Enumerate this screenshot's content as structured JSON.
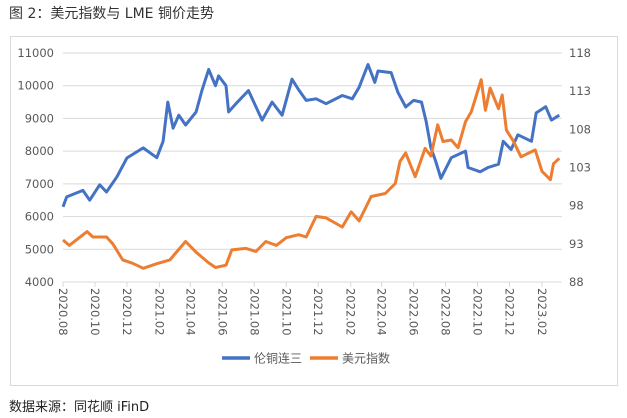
{
  "title": "图 2：美元指数与 LME 铜价走势",
  "source": "数据来源：同花顺 iFinD",
  "chart_data": {
    "type": "line",
    "title": "图 2：美元指数与 LME 铜价走势",
    "legend_position": "bottom",
    "grid": true,
    "x_ticks": [
      "2020.08",
      "2020.10",
      "2020.12",
      "2021.02",
      "2021.04",
      "2021.06",
      "2021.08",
      "2021.10",
      "2021.12",
      "2022.02",
      "2022.04",
      "2022.06",
      "2022.08",
      "2022.10",
      "2022.12",
      "2023.02"
    ],
    "x_tick_dates": [
      "2020-08-01",
      "2020-10-01",
      "2020-12-01",
      "2021-02-01",
      "2021-04-01",
      "2021-06-01",
      "2021-08-01",
      "2021-10-01",
      "2021-12-01",
      "2022-02-01",
      "2022-04-01",
      "2022-06-01",
      "2022-08-01",
      "2022-10-01",
      "2022-12-01",
      "2023-02-01"
    ],
    "y_left": {
      "range": [
        4000,
        11000
      ],
      "ticks": [
        "4000",
        "5000",
        "6000",
        "7000",
        "8000",
        "9000",
        "10000",
        "11000"
      ]
    },
    "y_right": {
      "range": [
        88,
        118
      ],
      "ticks": [
        "88",
        "93",
        "98",
        "103",
        "108",
        "113",
        "118"
      ]
    },
    "series": [
      {
        "name": "伦铜连三",
        "axis": "left",
        "color": "#4472C4",
        "points": [
          [
            "2020-08-01",
            6300
          ],
          [
            "2020-08-08",
            6600
          ],
          [
            "2020-09-08",
            6800
          ],
          [
            "2020-09-21",
            6500
          ],
          [
            "2020-10-10",
            6970
          ],
          [
            "2020-10-23",
            6750
          ],
          [
            "2020-11-12",
            7220
          ],
          [
            "2020-12-01",
            7790
          ],
          [
            "2020-12-12",
            7900
          ],
          [
            "2021-01-01",
            8100
          ],
          [
            "2021-01-27",
            7800
          ],
          [
            "2021-02-08",
            8300
          ],
          [
            "2021-02-17",
            9500
          ],
          [
            "2021-02-27",
            8700
          ],
          [
            "2021-03-10",
            9100
          ],
          [
            "2021-03-23",
            8800
          ],
          [
            "2021-04-12",
            9200
          ],
          [
            "2021-04-23",
            9850
          ],
          [
            "2021-05-06",
            10500
          ],
          [
            "2021-05-19",
            10000
          ],
          [
            "2021-05-25",
            10300
          ],
          [
            "2021-06-08",
            10000
          ],
          [
            "2021-06-13",
            9200
          ],
          [
            "2021-06-27",
            9450
          ],
          [
            "2021-07-21",
            9850
          ],
          [
            "2021-08-16",
            8950
          ],
          [
            "2021-09-04",
            9500
          ],
          [
            "2021-09-23",
            9100
          ],
          [
            "2021-10-12",
            10200
          ],
          [
            "2021-10-25",
            9870
          ],
          [
            "2021-11-08",
            9550
          ],
          [
            "2021-11-27",
            9600
          ],
          [
            "2021-12-16",
            9450
          ],
          [
            "2022-01-16",
            9700
          ],
          [
            "2022-02-04",
            9600
          ],
          [
            "2022-02-17",
            9950
          ],
          [
            "2022-03-06",
            10650
          ],
          [
            "2022-03-19",
            10100
          ],
          [
            "2022-03-25",
            10450
          ],
          [
            "2022-04-19",
            10400
          ],
          [
            "2022-05-02",
            9800
          ],
          [
            "2022-05-17",
            9350
          ],
          [
            "2022-06-01",
            9550
          ],
          [
            "2022-06-16",
            9500
          ],
          [
            "2022-06-25",
            8900
          ],
          [
            "2022-07-04",
            8100
          ],
          [
            "2022-07-13",
            7700
          ],
          [
            "2022-07-23",
            7170
          ],
          [
            "2022-08-12",
            7800
          ],
          [
            "2022-09-08",
            8000
          ],
          [
            "2022-09-13",
            7500
          ],
          [
            "2022-10-06",
            7370
          ],
          [
            "2022-10-21",
            7500
          ],
          [
            "2022-11-10",
            7600
          ],
          [
            "2022-11-19",
            8300
          ],
          [
            "2022-12-04",
            8050
          ],
          [
            "2022-12-17",
            8500
          ],
          [
            "2023-01-12",
            8300
          ],
          [
            "2023-01-21",
            9170
          ],
          [
            "2023-02-08",
            9360
          ],
          [
            "2023-02-19",
            8950
          ],
          [
            "2023-03-06",
            9100
          ]
        ]
      },
      {
        "name": "美元指数",
        "axis": "right",
        "color": "#ED7D31",
        "points": [
          [
            "2020-08-01",
            93.5
          ],
          [
            "2020-08-13",
            92.8
          ],
          [
            "2020-09-16",
            94.6
          ],
          [
            "2020-09-27",
            93.9
          ],
          [
            "2020-10-23",
            93.9
          ],
          [
            "2020-11-04",
            93.0
          ],
          [
            "2020-11-23",
            90.9
          ],
          [
            "2020-12-12",
            90.45
          ],
          [
            "2021-01-01",
            89.8
          ],
          [
            "2021-01-27",
            90.4
          ],
          [
            "2021-02-21",
            90.9
          ],
          [
            "2021-03-04",
            91.8
          ],
          [
            "2021-03-23",
            93.3
          ],
          [
            "2021-04-12",
            91.9
          ],
          [
            "2021-05-06",
            90.5
          ],
          [
            "2021-05-19",
            89.9
          ],
          [
            "2021-06-08",
            90.2
          ],
          [
            "2021-06-19",
            92.2
          ],
          [
            "2021-07-16",
            92.4
          ],
          [
            "2021-08-04",
            92.0
          ],
          [
            "2021-08-23",
            93.3
          ],
          [
            "2021-09-12",
            92.8
          ],
          [
            "2021-10-01",
            93.8
          ],
          [
            "2021-10-25",
            94.2
          ],
          [
            "2021-11-08",
            93.9
          ],
          [
            "2021-11-27",
            96.6
          ],
          [
            "2021-12-16",
            96.4
          ],
          [
            "2022-01-16",
            95.2
          ],
          [
            "2022-02-02",
            97.2
          ],
          [
            "2022-02-17",
            96.0
          ],
          [
            "2022-03-12",
            99.2
          ],
          [
            "2022-04-08",
            99.6
          ],
          [
            "2022-04-27",
            100.9
          ],
          [
            "2022-05-06",
            103.8
          ],
          [
            "2022-05-17",
            104.9
          ],
          [
            "2022-06-04",
            101.8
          ],
          [
            "2022-06-23",
            105.5
          ],
          [
            "2022-07-04",
            104.5
          ],
          [
            "2022-07-17",
            108.6
          ],
          [
            "2022-07-27",
            106.4
          ],
          [
            "2022-08-12",
            106.6
          ],
          [
            "2022-08-25",
            105.6
          ],
          [
            "2022-09-08",
            109.0
          ],
          [
            "2022-09-19",
            110.3
          ],
          [
            "2022-10-08",
            114.5
          ],
          [
            "2022-10-16",
            110.5
          ],
          [
            "2022-10-25",
            113.4
          ],
          [
            "2022-11-10",
            110.7
          ],
          [
            "2022-11-17",
            112.5
          ],
          [
            "2022-11-25",
            107.9
          ],
          [
            "2022-12-08",
            106.5
          ],
          [
            "2022-12-23",
            104.4
          ],
          [
            "2023-01-19",
            105.3
          ],
          [
            "2023-02-01",
            102.5
          ],
          [
            "2023-02-17",
            101.4
          ],
          [
            "2023-02-23",
            103.5
          ],
          [
            "2023-03-06",
            104.2
          ]
        ]
      }
    ]
  }
}
